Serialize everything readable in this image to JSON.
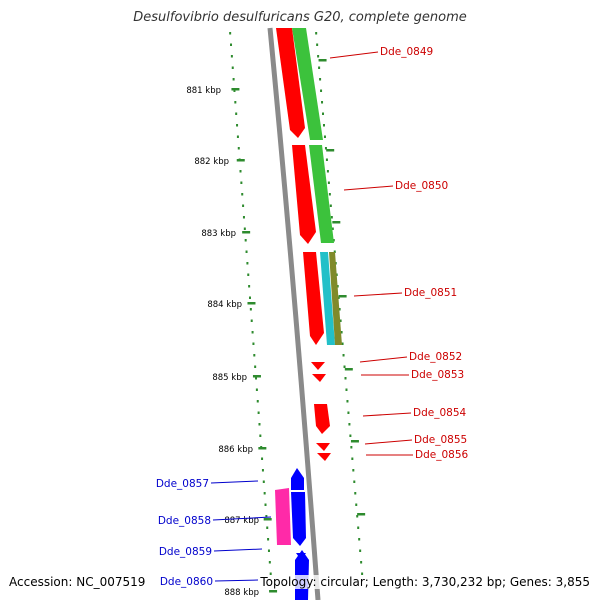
{
  "title": "Desulfovibrio desulfuricans G20, complete genome",
  "footer": {
    "accession": "Accession: NC_007519",
    "summary": "Topology: circular; Length: 3,730,232 bp; Genes: 3,855"
  },
  "colors": {
    "backbone": "#8a8a8a",
    "tick": "#2e8b2e",
    "gene_red": "#ff0000",
    "gene_green": "#3cc23c",
    "gene_cyan": "#22c0c8",
    "gene_olive": "#808a2a",
    "gene_blue": "#0000ff",
    "gene_pink": "#ff2aa8",
    "label_fwd": "#cc0000",
    "label_rev": "#0000cc"
  },
  "scale": {
    "labels": [
      "881 kbp",
      "882 kbp",
      "883 kbp",
      "884 kbp",
      "885 kbp",
      "886 kbp",
      "887 kbp",
      "888 kbp"
    ]
  },
  "genes": [
    {
      "label": "Dde_0849",
      "strand": "+",
      "color": "#ff0000"
    },
    {
      "label": "Dde_0850",
      "strand": "+",
      "color": "#ff0000"
    },
    {
      "label": "Dde_0851",
      "strand": "+",
      "color": "#ff0000"
    },
    {
      "label": "Dde_0852",
      "strand": "+",
      "color": "#ff0000"
    },
    {
      "label": "Dde_0853",
      "strand": "+",
      "color": "#ff0000"
    },
    {
      "label": "Dde_0854",
      "strand": "+",
      "color": "#ff0000"
    },
    {
      "label": "Dde_0855",
      "strand": "+",
      "color": "#ff0000"
    },
    {
      "label": "Dde_0856",
      "strand": "+",
      "color": "#ff0000"
    },
    {
      "label": "Dde_0857",
      "strand": "-",
      "color": "#0000ff"
    },
    {
      "label": "Dde_0858",
      "strand": "-",
      "color": "#ff2aa8"
    },
    {
      "label": "Dde_0859",
      "strand": "-",
      "color": "#0000ff"
    },
    {
      "label": "Dde_0860",
      "strand": "-",
      "color": "#0000ff"
    }
  ]
}
